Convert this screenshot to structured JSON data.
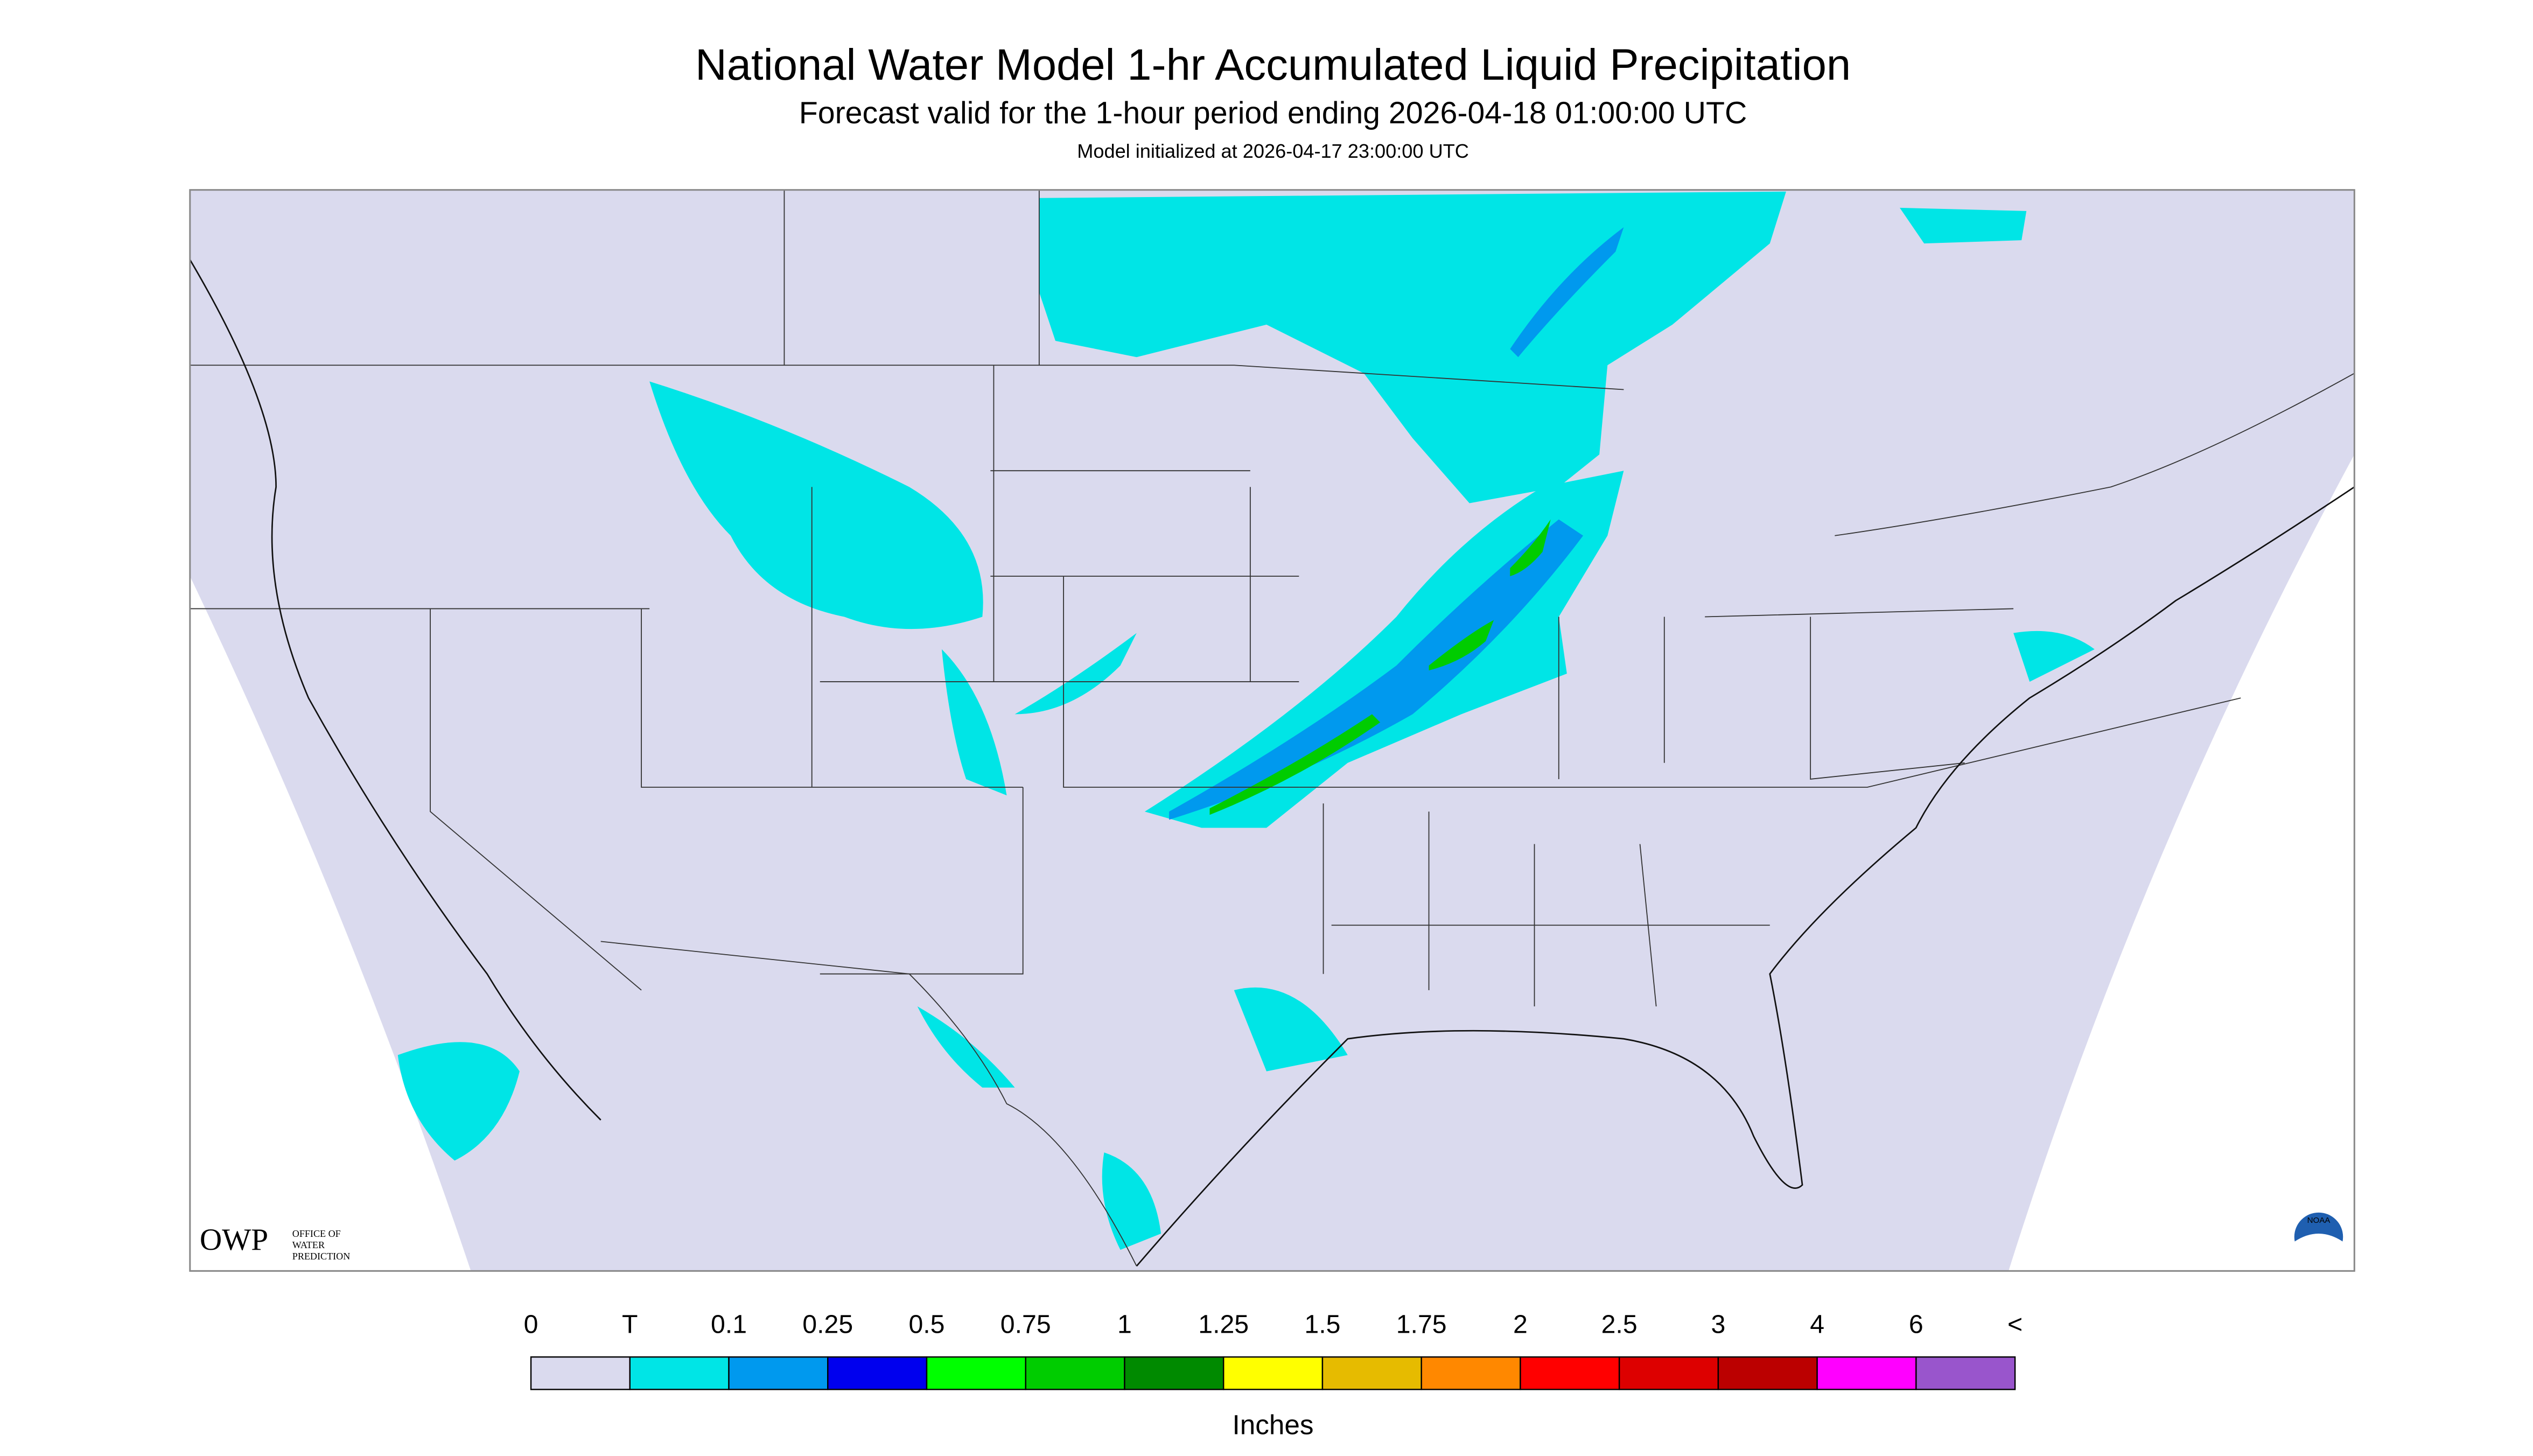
{
  "header": {
    "title": "National Water Model 1-hr Accumulated Liquid Precipitation",
    "subtitle": "Forecast valid for the 1-hour period ending 2026-04-18 01:00:00 UTC",
    "note": "Model initialized at 2026-04-17 23:00:00 UTC"
  },
  "legend": {
    "labels": [
      "0",
      "T",
      "0.1",
      "0.25",
      "0.5",
      "0.75",
      "1",
      "1.25",
      "1.5",
      "1.75",
      "2",
      "2.5",
      "3",
      "4",
      "6",
      "<"
    ],
    "colors": [
      "#dadaee",
      "#00e5e6",
      "#0099ee",
      "#0000ee",
      "#00ff00",
      "#00cc00",
      "#008a00",
      "#ffff00",
      "#e6bb00",
      "#ff8800",
      "#ff0000",
      "#dd0000",
      "#bb0000",
      "#ff00ff",
      "#9955cc"
    ],
    "unit": "Inches"
  },
  "logos": {
    "owp": "OWP",
    "owp_text": [
      "OFFICE OF",
      "WATER",
      "PREDICTION"
    ],
    "noaa": "NOAA"
  }
}
